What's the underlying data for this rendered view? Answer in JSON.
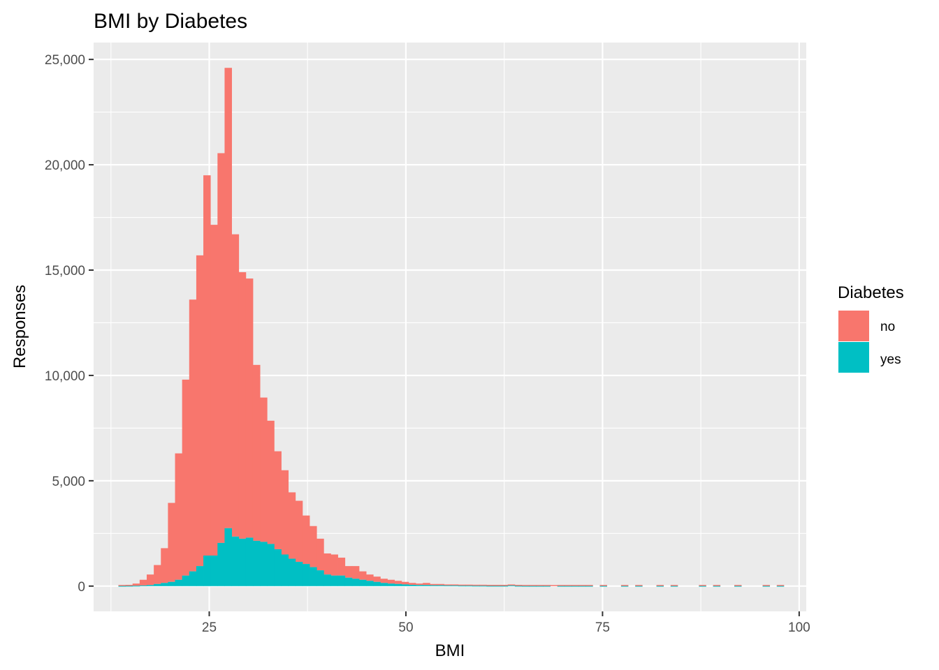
{
  "chart_data": {
    "type": "bar",
    "subtype": "stacked-histogram",
    "title": "BMI by Diabetes",
    "xlabel": "BMI",
    "ylabel": "Responses",
    "xlim": [
      10.3,
      100.9
    ],
    "ylim": [
      -1200,
      25800
    ],
    "x_ticks": [
      25,
      50,
      75,
      100
    ],
    "x_tick_labels": [
      "25",
      "50",
      "75",
      "100"
    ],
    "y_ticks": [
      0,
      5000,
      10000,
      15000,
      20000,
      25000
    ],
    "y_tick_labels": [
      "0",
      "5,000",
      "10,000",
      "15,000",
      "20,000",
      "25,000"
    ],
    "grid": true,
    "bin_width": 0.9,
    "legend": {
      "title": "Diabetes",
      "placement": "right",
      "entries": [
        {
          "label": "no",
          "color": "#F8766D"
        },
        {
          "label": "yes",
          "color": "#00BFC4"
        }
      ]
    },
    "bins": [
      {
        "x": 13.9,
        "total": 30,
        "yes": 5
      },
      {
        "x": 14.8,
        "total": 60,
        "yes": 10
      },
      {
        "x": 15.7,
        "total": 120,
        "yes": 15
      },
      {
        "x": 16.6,
        "total": 300,
        "yes": 30
      },
      {
        "x": 17.5,
        "total": 550,
        "yes": 50
      },
      {
        "x": 18.4,
        "total": 1000,
        "yes": 100
      },
      {
        "x": 19.3,
        "total": 1800,
        "yes": 150
      },
      {
        "x": 20.2,
        "total": 3950,
        "yes": 200
      },
      {
        "x": 21.1,
        "total": 6300,
        "yes": 300
      },
      {
        "x": 22.0,
        "total": 9800,
        "yes": 500
      },
      {
        "x": 22.9,
        "total": 13600,
        "yes": 700
      },
      {
        "x": 23.8,
        "total": 15700,
        "yes": 950
      },
      {
        "x": 24.7,
        "total": 19500,
        "yes": 1450
      },
      {
        "x": 25.6,
        "total": 17150,
        "yes": 1450
      },
      {
        "x": 26.5,
        "total": 20550,
        "yes": 2050
      },
      {
        "x": 27.4,
        "total": 24600,
        "yes": 2750
      },
      {
        "x": 28.3,
        "total": 16700,
        "yes": 2350
      },
      {
        "x": 29.2,
        "total": 14900,
        "yes": 2250
      },
      {
        "x": 30.1,
        "total": 14600,
        "yes": 2300
      },
      {
        "x": 31.0,
        "total": 10500,
        "yes": 2150
      },
      {
        "x": 31.9,
        "total": 8950,
        "yes": 2100
      },
      {
        "x": 32.8,
        "total": 7850,
        "yes": 2000
      },
      {
        "x": 33.7,
        "total": 6400,
        "yes": 1750
      },
      {
        "x": 34.6,
        "total": 5500,
        "yes": 1500
      },
      {
        "x": 35.5,
        "total": 4450,
        "yes": 1300
      },
      {
        "x": 36.4,
        "total": 4050,
        "yes": 1150
      },
      {
        "x": 37.3,
        "total": 3350,
        "yes": 1050
      },
      {
        "x": 38.2,
        "total": 2850,
        "yes": 900
      },
      {
        "x": 39.1,
        "total": 2250,
        "yes": 750
      },
      {
        "x": 40.0,
        "total": 1550,
        "yes": 550
      },
      {
        "x": 40.9,
        "total": 1500,
        "yes": 500
      },
      {
        "x": 41.8,
        "total": 1350,
        "yes": 500
      },
      {
        "x": 42.7,
        "total": 950,
        "yes": 400
      },
      {
        "x": 43.6,
        "total": 950,
        "yes": 350
      },
      {
        "x": 44.5,
        "total": 700,
        "yes": 300
      },
      {
        "x": 45.4,
        "total": 550,
        "yes": 250
      },
      {
        "x": 46.3,
        "total": 450,
        "yes": 200
      },
      {
        "x": 47.2,
        "total": 350,
        "yes": 150
      },
      {
        "x": 48.1,
        "total": 300,
        "yes": 120
      },
      {
        "x": 49.0,
        "total": 250,
        "yes": 100
      },
      {
        "x": 49.9,
        "total": 200,
        "yes": 80
      },
      {
        "x": 50.8,
        "total": 150,
        "yes": 60
      },
      {
        "x": 51.7,
        "total": 120,
        "yes": 50
      },
      {
        "x": 52.6,
        "total": 150,
        "yes": 50
      },
      {
        "x": 53.5,
        "total": 100,
        "yes": 40
      },
      {
        "x": 54.4,
        "total": 100,
        "yes": 40
      },
      {
        "x": 55.3,
        "total": 80,
        "yes": 30
      },
      {
        "x": 56.2,
        "total": 80,
        "yes": 30
      },
      {
        "x": 57.1,
        "total": 60,
        "yes": 20
      },
      {
        "x": 58.0,
        "total": 60,
        "yes": 20
      },
      {
        "x": 58.9,
        "total": 50,
        "yes": 15
      },
      {
        "x": 59.8,
        "total": 40,
        "yes": 15
      },
      {
        "x": 60.7,
        "total": 40,
        "yes": 10
      },
      {
        "x": 61.6,
        "total": 30,
        "yes": 10
      },
      {
        "x": 62.5,
        "total": 30,
        "yes": 10
      },
      {
        "x": 63.4,
        "total": 50,
        "yes": 30
      },
      {
        "x": 64.3,
        "total": 25,
        "yes": 10
      },
      {
        "x": 65.2,
        "total": 20,
        "yes": 5
      },
      {
        "x": 66.1,
        "total": 20,
        "yes": 5
      },
      {
        "x": 67.0,
        "total": 15,
        "yes": 5
      },
      {
        "x": 67.9,
        "total": 15,
        "yes": 5
      },
      {
        "x": 68.8,
        "total": 10,
        "yes": 0
      },
      {
        "x": 69.7,
        "total": 15,
        "yes": 5
      },
      {
        "x": 70.6,
        "total": 30,
        "yes": 5
      },
      {
        "x": 71.5,
        "total": 20,
        "yes": 5
      },
      {
        "x": 72.4,
        "total": 30,
        "yes": 5
      },
      {
        "x": 73.3,
        "total": 40,
        "yes": 5
      },
      {
        "x": 75.1,
        "total": 50,
        "yes": 5
      },
      {
        "x": 77.8,
        "total": 50,
        "yes": 5
      },
      {
        "x": 79.6,
        "total": 40,
        "yes": 5
      },
      {
        "x": 82.3,
        "total": 40,
        "yes": 5
      },
      {
        "x": 84.1,
        "total": 30,
        "yes": 5
      },
      {
        "x": 87.7,
        "total": 50,
        "yes": 5
      },
      {
        "x": 89.5,
        "total": 30,
        "yes": 5
      },
      {
        "x": 92.2,
        "total": 30,
        "yes": 5
      },
      {
        "x": 95.8,
        "total": 20,
        "yes": 5
      },
      {
        "x": 97.6,
        "total": 20,
        "yes": 5
      }
    ]
  }
}
